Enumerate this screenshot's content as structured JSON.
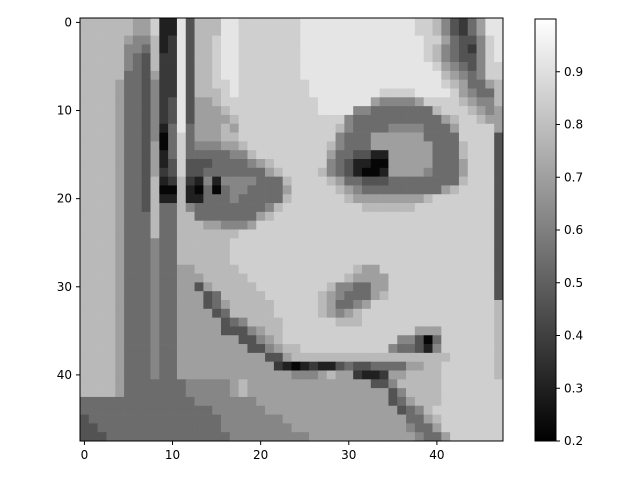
{
  "chart_data": {
    "type": "heatmap",
    "colormap": "gray",
    "grid": false,
    "xlim": [
      -0.5,
      47.5
    ],
    "ylim": [
      47.5,
      -0.5
    ],
    "x_ticks": [
      0,
      10,
      20,
      30,
      40
    ],
    "y_ticks": [
      0,
      10,
      20,
      30,
      40
    ],
    "colorbar": {
      "range": [
        0.2,
        1.0
      ],
      "ticks": [
        "0.2",
        "0.3",
        "0.4",
        "0.5",
        "0.6",
        "0.7",
        "0.8",
        "0.9"
      ]
    },
    "grid_size": [
      48,
      48
    ],
    "rows": [
      "hhhhhhggibbjdhhhjjiiiiiiijjjjjjjjjjjjjiihfdcegjj",
      "hhhhhhggibbjdhhhjjiiiiiiijjjjjjjjjjjjjiihfdcegjj",
      "hhhhhgffhbcjdhhijjiiiiiiijjjjjjjjjjjjjjiigeddfij",
      "hhhhhffehbcjdhhijjiiiiiiijjjjjjjjjjjjjjihfedcfij",
      "hhhhhfedhccjdhhijjiiiiiiijjjjjjjjjjjjjjihfeddfij",
      "hhhhhfedhccjdhhijjiiiiiiijjjjjjjjjjjjjjjigfedfii",
      "hhhhheedgccjdhhijjiiiiiiijjjjjjjjjjjjjjjjhgfefii",
      "hhhhgeedfccjdhhiijiiiiiiiijjjjjjjjjjjjjjjihgeegh",
      "hhhhgeedfccjdhhhijiiiiiiiijjjjjjjjiiiijjjjigfeeh",
      "hhhhgeedfcdjdgghiiiiiiiiiiijjjjjjgffffgiiiihgffh",
      "hhhhgeedfcdjdggghiiiiiiiiiijjjjffeeeeeeehiiihgfg",
      "hhhhgeedfcdjdgggghiiiiiiiiiiiifeeeeeeeeeeghiihgg",
      "hhhhgeedfbejeggghgiiiiiiiiiiihfeeeeffffeeegiiiig",
      "hhhhgeedfaeieggghhiiiiiiiiiiifeeeggggggeeeeiiiid",
      "hhhhgeedgaeiefffgghiiiiiiiiihfeeegggggggeeehiiid",
      "hhhhgeedgbeieeeeeffhiiiiiiiigeeddbbgggggeeehiiid",
      "hhhhgeedgbdidddeeeefghiiiiiifedbbaagggggeeegiiid",
      "hhhhgeedgcdiddeeeeeeeghiiiihfedbaabggggfeeegiiid",
      "hhhhgeedhbchcbfbffffeeehiiiihgeedddeeeeeeeehiiid",
      "hhhhgeedhaahbaeaeffeeeegiiiiihgfeeeeeeeeeghiiiid",
      "hhhhgeedhbbhbbeeefeeeeehiiiiiihgggggggghiiiiiiid",
      "hhhhgeedheehfeeeeeeeefhiiiiiiiiihhhhhhiiiiiiiiid",
      "hhhhgeeeheehheeeeeeeghiiiiiiiiiiiiiiiiiiiiiiiiid",
      "hhhhgeeeheehhhggfffgiiiiiiiiiiiiiiiiiiiiiiiiiiid",
      "hhhhgeeeheehhhhhhhiiiiiiiiiiiiiiiiiiiiiiiiiiiiid",
      "hhhhgeeefeehhhhhhiiiiiiiiiiiiiiiiiiiiiiiiiiiiiid",
      "hhhhgeeefeehhhhhhiiiiiiiiiiiiiiiiiiiiiiiiiiiiiid",
      "hhhhgeeefeehhhhhhiiiiiiiiiiiiiiiiiiiiiiiiiiiiiid",
      "hhhhgeeefeegghhhhhiiiiiiiiiiiiihggiiiiiiiiiiiiid",
      "hhhhgeeefeeggghhhhhiiiiiiiiiiihggggiiiiiiiiiiiid",
      "hhhhgeeefeeggdghhhhhiiiiiiiihffeeggiiiiiiiiiiiid",
      "hhhhgeeefeegggdehhhhhiiiiiihgfeeeghiiiiiiiiiiiid",
      "hhhhgeeefeegggdeghhhhhiiiiihgeefgiiiiiiiiiiiiiih",
      "hhhhgeeefeeggggdehhhhhiiiiihgfghiiiiiiiiiiiiiiih",
      "hhhhgeeefeegggggdefhhhhiiiiiihhhiiiiiiiiiiiiiiih",
      "hhhhgeeefeegggggdddfghhiiiiiiiiiiiiiiigggiiiiiih",
      "hhhhgeeefeegggggggddfghiiiiiiiiiiiiiffdaeiiiiiih",
      "hhhhgeeefeeggggggggddfghhiiiiiiiiiifeedbfiiiiiih",
      "hhhhgeeefeeggggggggggddghhhhhhhhhhhhhhhhhhiiiiih",
      "hhhhgeeefeegggggggggggcbabcbbdeddeeeegghhiiiiiih",
      "hhhhgeeefeegggggggggggggfffghggcbbcgghhhhiiiiiih",
      "hhhhgeeeeeeefffffghggggggggggggggddfhhhhhiiiiiii",
      "hhhhgeeeeeeefffffghggggggggggggggggdfhhhhiiiiiii",
      "eeeeeeeeeeeeefffffffgggggggggggggggdeghhhiiiiiii",
      "eeeeeeeeeeeeeeeffffffgggggggggggggggdefhiiiiiiii",
      "deeeeeeeeeeeeeeefffffffggggggggggggggeeghiiiiiii",
      "ddeeeeeeeeeeeeeeffffffffgggggggggggggfeegiiiiiii",
      "dddeeeeeeeeeeeeeefffffffffggggggggggggfeegiiiiii"
    ],
    "value_levels": {
      "a": 0.22,
      "b": 0.3,
      "c": 0.38,
      "d": 0.46,
      "e": 0.54,
      "f": 0.62,
      "g": 0.7,
      "h": 0.78,
      "i": 0.85,
      "j": 0.92
    }
  }
}
